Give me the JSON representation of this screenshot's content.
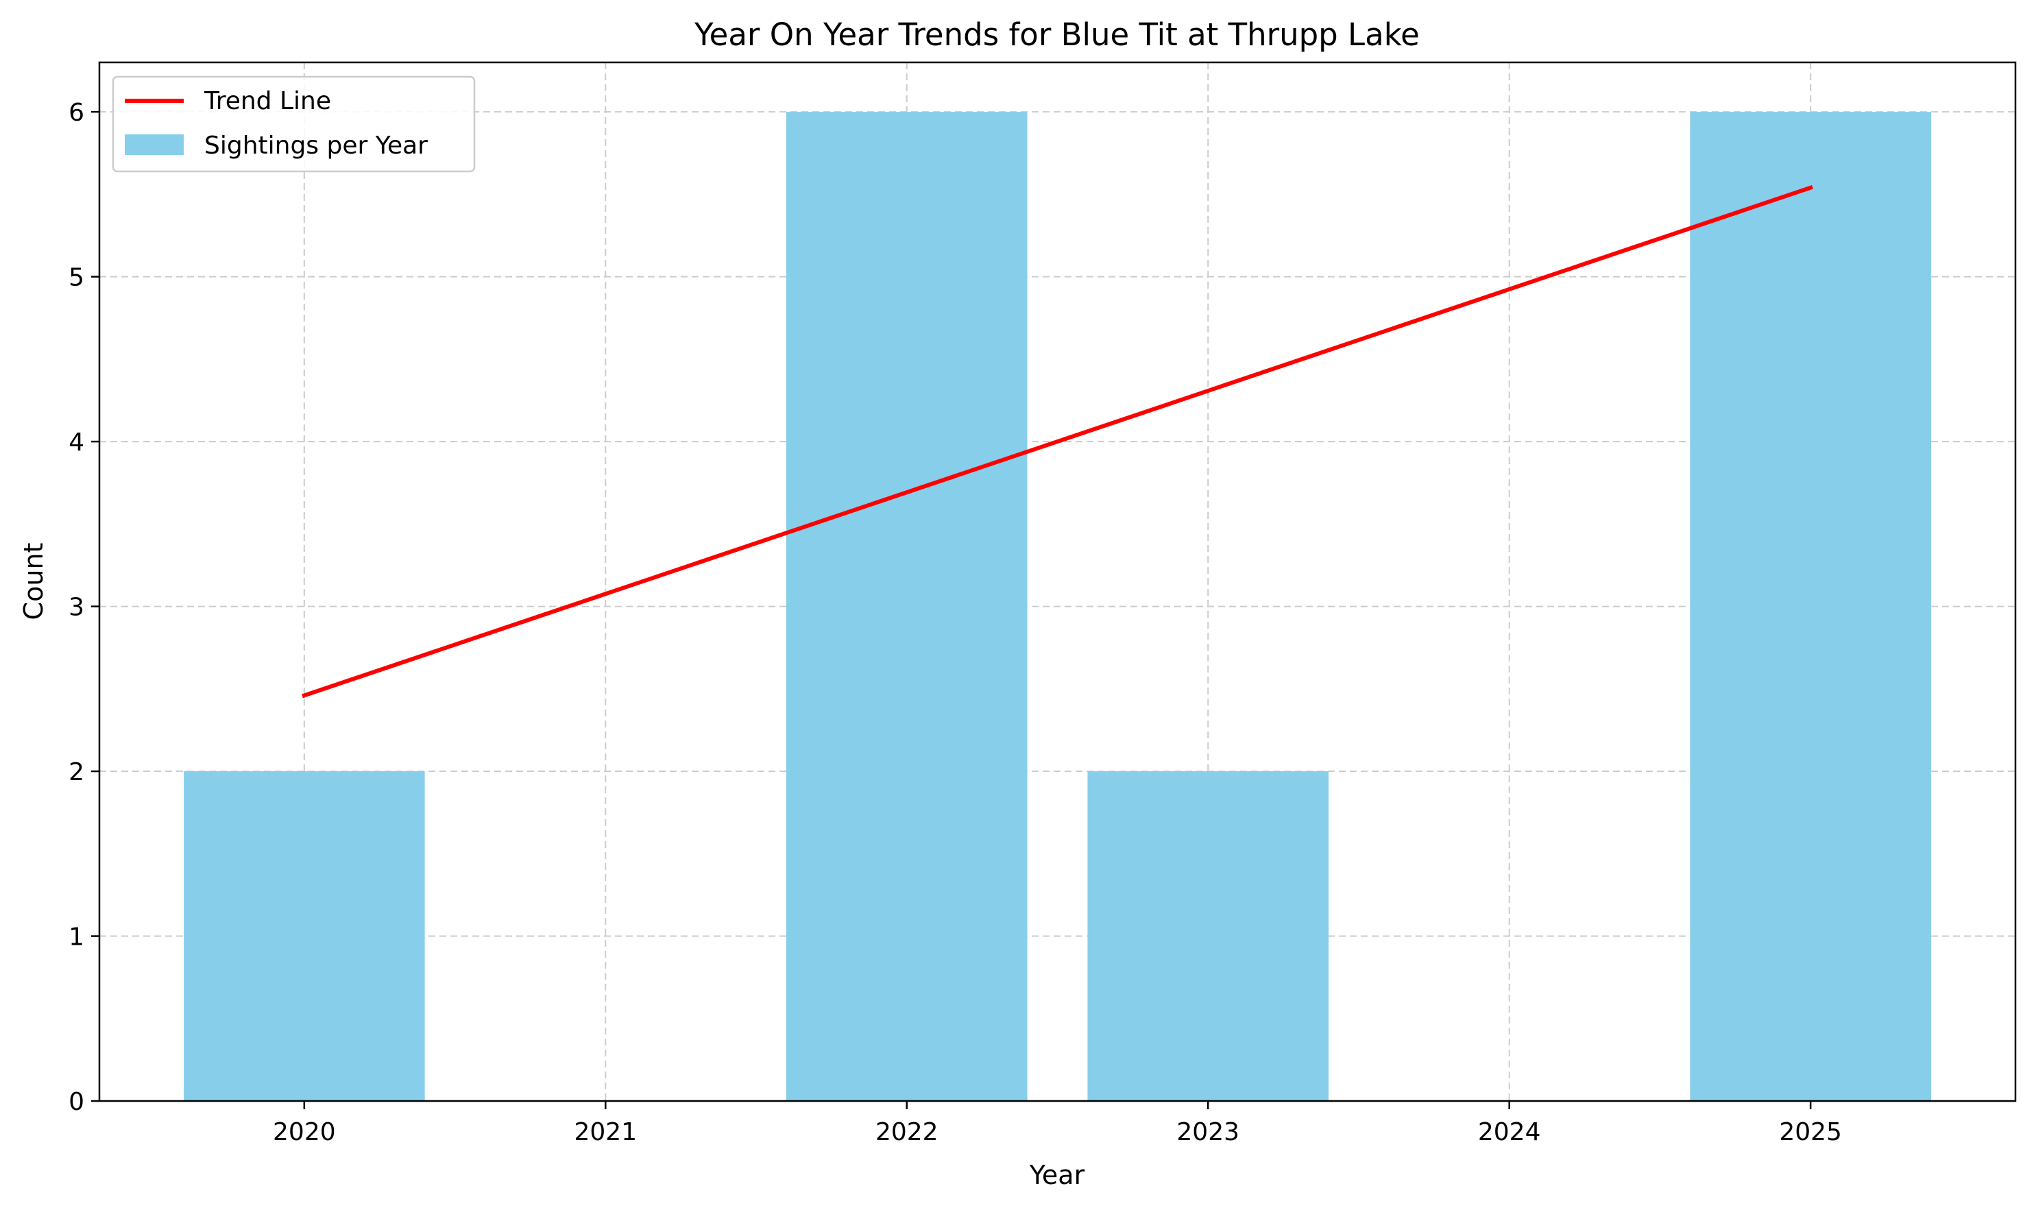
{
  "chart_data": {
    "type": "bar",
    "title": "Year On Year Trends for Blue Tit at Thrupp Lake",
    "xlabel": "Year",
    "ylabel": "Count",
    "categories": [
      "2020",
      "2021",
      "2022",
      "2023",
      "2024",
      "2025"
    ],
    "series": [
      {
        "name": "Sightings per Year",
        "type": "bar",
        "x": [
          2020,
          2022,
          2023,
          2025
        ],
        "values": [
          2,
          6,
          2,
          6
        ],
        "color": "#87ceeb"
      },
      {
        "name": "Trend Line",
        "type": "line",
        "x": [
          2020,
          2025
        ],
        "values": [
          2.46,
          5.54
        ],
        "color": "#ff0000"
      }
    ],
    "xlim": [
      2019.32,
      2025.68
    ],
    "ylim": [
      0,
      6.3
    ],
    "yticks": [
      "0",
      "1",
      "2",
      "3",
      "4",
      "5",
      "6"
    ],
    "grid": true,
    "legend_position": "top-left"
  }
}
